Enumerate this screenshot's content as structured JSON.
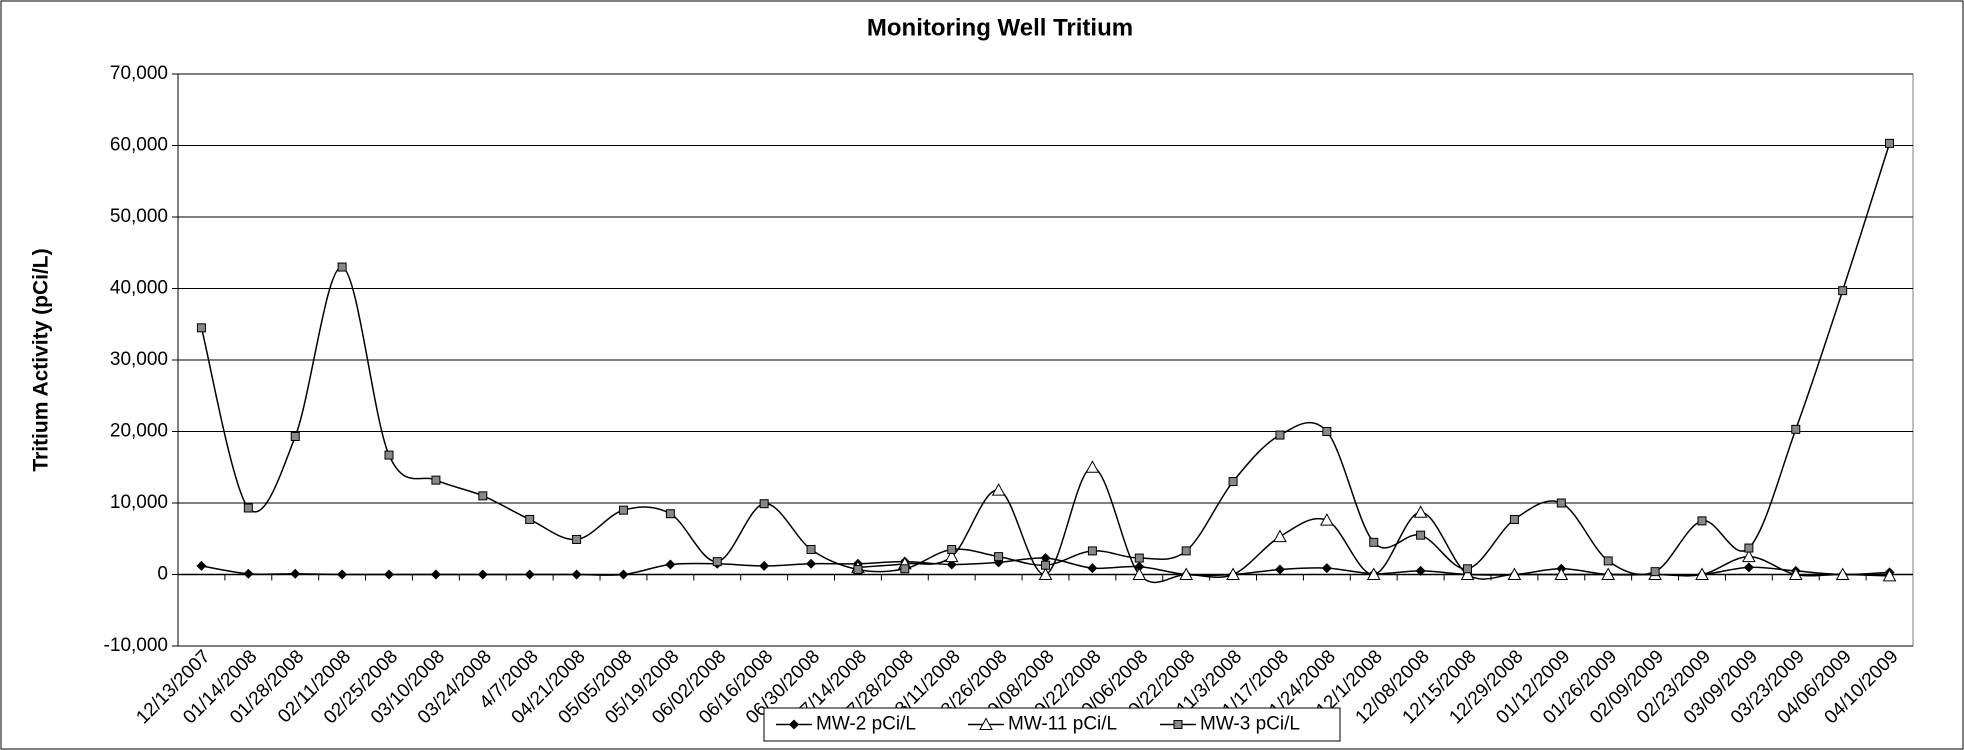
{
  "chart_data": {
    "type": "line",
    "title": "Monitoring Well Tritium",
    "y_label": "Tritium Activity (pCi/L)",
    "categories": [
      "12/13/2007",
      "01/14/2008",
      "01/28/2008",
      "02/11/2008",
      "02/25/2008",
      "03/10/2008",
      "03/24/2008",
      "4/7/2008",
      "04/21/2008",
      "05/05/2008",
      "05/19/2008",
      "06/02/2008",
      "06/16/2008",
      "06/30/2008",
      "07/14/2008",
      "07/28/2008",
      "08/11/2008",
      "08/26/2008",
      "09/08/2008",
      "09/22/2008",
      "10/06/2008",
      "10/22/2008",
      "11/3/2008",
      "11/17/2008",
      "11/24/2008",
      "12/1/2008",
      "12/08/2008",
      "12/15/2008",
      "12/29/2008",
      "01/12/2009",
      "01/26/2009",
      "02/09/2009",
      "02/23/2009",
      "03/09/2009",
      "03/23/2009",
      "04/06/2009",
      "04/10/2009"
    ],
    "series": [
      {
        "name": "MW-2 pCi/L",
        "color": "#000000",
        "marker": "diamond",
        "values": [
          1200,
          100,
          100,
          0,
          0,
          0,
          0,
          0,
          0,
          0,
          1400,
          1500,
          1200,
          1500,
          1500,
          1800,
          1400,
          1700,
          2300,
          900,
          1100,
          0,
          0,
          700,
          900,
          100,
          500,
          0,
          0,
          800,
          0,
          0,
          0,
          1000,
          500,
          0,
          300
        ]
      },
      {
        "name": "MW-11 pCi/L",
        "color": "#000000",
        "marker": "triangle",
        "values": [
          null,
          null,
          null,
          null,
          null,
          null,
          null,
          null,
          null,
          null,
          null,
          null,
          null,
          null,
          1000,
          1500,
          2500,
          11800,
          0,
          15000,
          0,
          0,
          0,
          5300,
          7600,
          0,
          8700,
          0,
          0,
          0,
          0,
          0,
          0,
          2500,
          0,
          0,
          -200
        ]
      },
      {
        "name": "MW-3 pCi/L",
        "color": "#000000",
        "marker": "square",
        "values": [
          34500,
          9300,
          19300,
          43000,
          16700,
          13200,
          11000,
          7700,
          4900,
          9000,
          8500,
          1800,
          9900,
          3500,
          700,
          800,
          3500,
          2500,
          1300,
          3300,
          2300,
          3300,
          13000,
          19500,
          20000,
          4500,
          5500,
          800,
          7700,
          10000,
          1900,
          400,
          7500,
          3700,
          20300,
          39700,
          60300
        ]
      }
    ],
    "ylim": [
      -10000,
      70000
    ],
    "yticks": [
      {
        "value": -10000,
        "label": "-10,000"
      },
      0,
      {
        "value": 10000,
        "label": "10,000"
      },
      {
        "value": 20000,
        "label": "20,000"
      },
      {
        "value": 30000,
        "label": "30,000"
      },
      {
        "value": 40000,
        "label": "40,000"
      },
      {
        "value": 50000,
        "label": "50,000"
      },
      {
        "value": 60000,
        "label": "60,000"
      },
      {
        "value": 70000,
        "label": "70,000"
      }
    ],
    "grid": true,
    "legend": "bottom"
  }
}
